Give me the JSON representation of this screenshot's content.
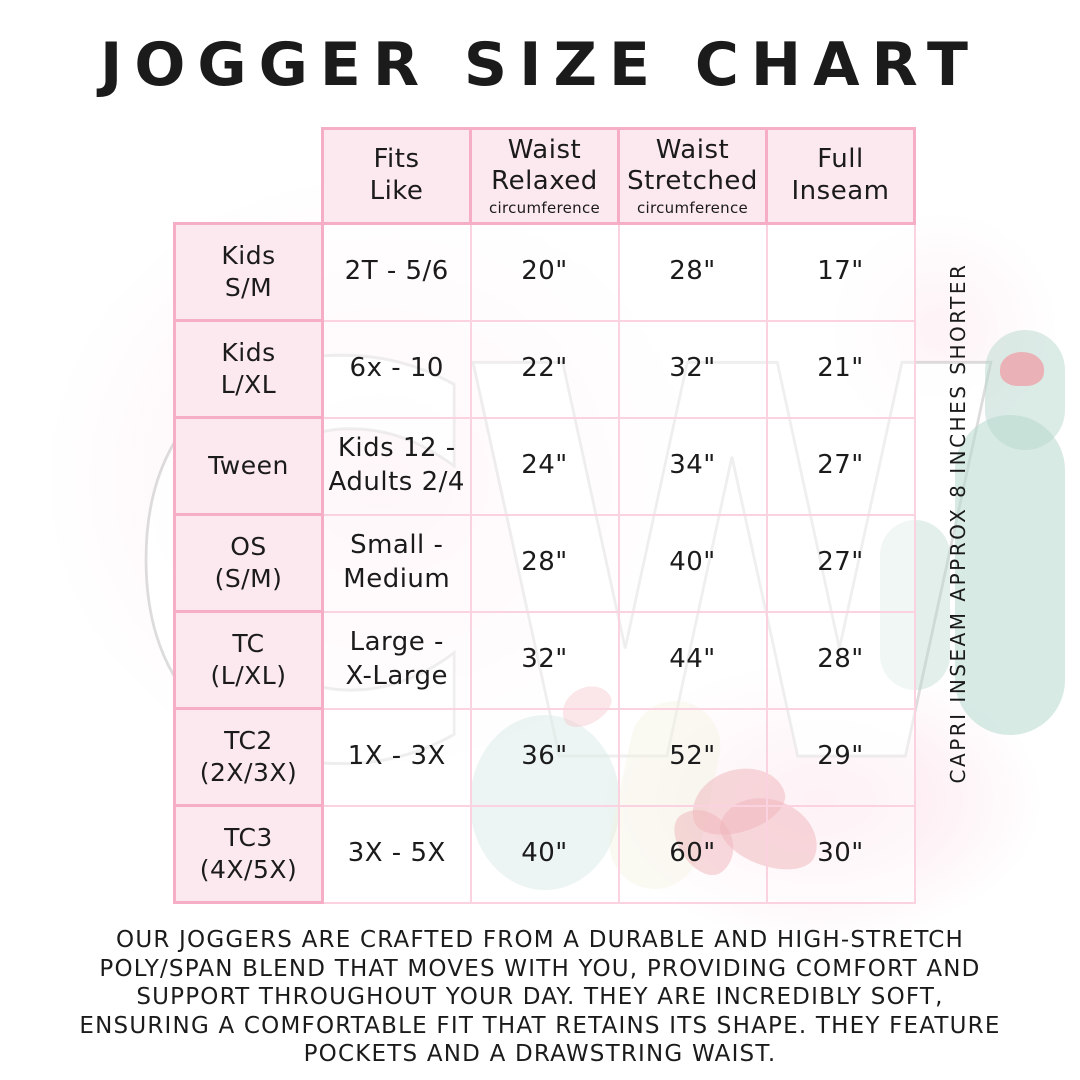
{
  "title": "JOGGER SIZE CHART",
  "watermark_text": "CW",
  "side_note": "CAPRI INSEAM APPROX 8 INCHES SHORTER",
  "table": {
    "column_headers": [
      {
        "label": "Fits\nLike",
        "sub": ""
      },
      {
        "label": "Waist\nRelaxed",
        "sub": "circumference"
      },
      {
        "label": "Waist\nStretched",
        "sub": "circumference"
      },
      {
        "label": "Full\nInseam",
        "sub": ""
      }
    ],
    "rows": [
      {
        "size": "Kids\nS/M",
        "cells": [
          "2T - 5/6",
          "20\"",
          "28\"",
          "17\""
        ]
      },
      {
        "size": "Kids\nL/XL",
        "cells": [
          "6x - 10",
          "22\"",
          "32\"",
          "21\""
        ]
      },
      {
        "size": "Tween",
        "cells": [
          "Kids 12 -\nAdults 2/4",
          "24\"",
          "34\"",
          "27\""
        ]
      },
      {
        "size": "OS\n(S/M)",
        "cells": [
          "Small -\nMedium",
          "28\"",
          "40\"",
          "27\""
        ]
      },
      {
        "size": "TC\n(L/XL)",
        "cells": [
          "Large -\nX-Large",
          "32\"",
          "44\"",
          "28\""
        ]
      },
      {
        "size": "TC2\n(2X/3X)",
        "cells": [
          "1X - 3X",
          "36\"",
          "52\"",
          "29\""
        ]
      },
      {
        "size": "TC3\n(4X/5X)",
        "cells": [
          "3X - 5X",
          "40\"",
          "60\"",
          "30\""
        ]
      }
    ]
  },
  "description_lines": [
    "OUR JOGGERS ARE CRAFTED FROM A DURABLE AND HIGH-STRETCH",
    "POLY/SPAN BLEND THAT MOVES WITH YOU, PROVIDING COMFORT AND",
    "SUPPORT THROUGHOUT YOUR DAY. THEY ARE INCREDIBLY SOFT,",
    "ENSURING A COMFORTABLE FIT THAT RETAINS ITS SHAPE. THEY FEATURE",
    "POCKETS AND A DRAWSTRING WAIST."
  ],
  "colors": {
    "cell_fill_pink": "#fce8ef",
    "border_strong_pink": "#f6aec7",
    "border_light_pink": "#fbd2e0",
    "text": "#1b1b1b",
    "watermark_teal": "#b7d8ce",
    "flower_red": "#df6370"
  }
}
